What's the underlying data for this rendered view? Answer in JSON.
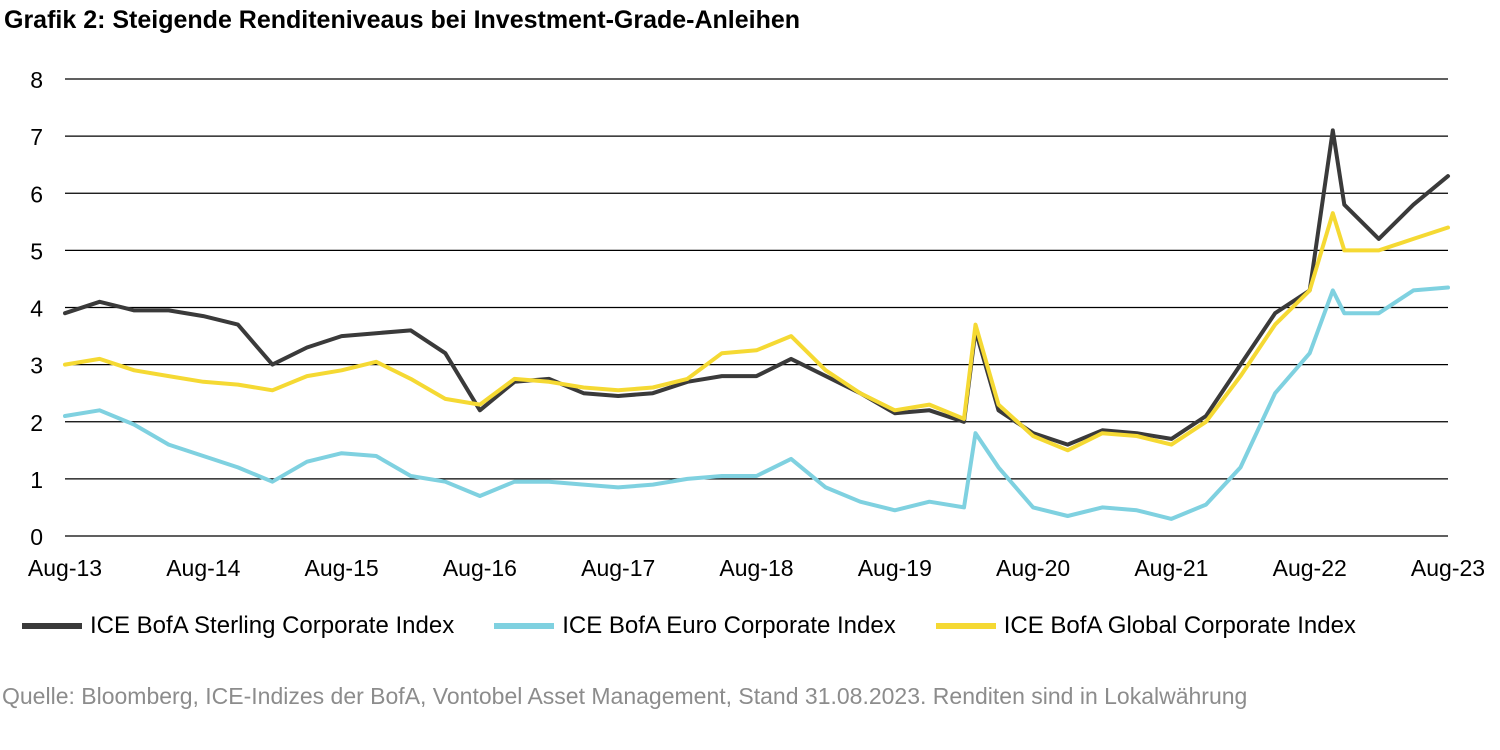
{
  "header": {
    "title": "Grafik 2: Steigende Renditeniveaus bei Investment-Grade-Anleihen"
  },
  "footer": {
    "source": "Quelle: Bloomberg, ICE-Indizes der BofA, Vontobel Asset Management, Stand 31.08.2023. Renditen sind in Lokalwährung"
  },
  "chart_data": {
    "type": "line",
    "title": "Grafik 2: Steigende Renditeniveaus bei Investment-Grade-Anleihen",
    "xlabel": "",
    "ylabel": "",
    "x_tick_labels": [
      "Aug-13",
      "Aug-14",
      "Aug-15",
      "Aug-16",
      "Aug-17",
      "Aug-18",
      "Aug-19",
      "Aug-20",
      "Aug-21",
      "Aug-22",
      "Aug-23"
    ],
    "y_tick_labels": [
      "0",
      "1",
      "2",
      "3",
      "4",
      "5",
      "6",
      "7",
      "8"
    ],
    "xlim": [
      "Aug-13",
      "Aug-23"
    ],
    "ylim": [
      0,
      8
    ],
    "grid": "horizontal",
    "legend_position": "bottom",
    "x": [
      "Aug-13",
      "Nov-13",
      "Feb-14",
      "May-14",
      "Aug-14",
      "Nov-14",
      "Feb-15",
      "May-15",
      "Aug-15",
      "Nov-15",
      "Feb-16",
      "May-16",
      "Aug-16",
      "Nov-16",
      "Feb-17",
      "May-17",
      "Aug-17",
      "Nov-17",
      "Feb-18",
      "May-18",
      "Aug-18",
      "Nov-18",
      "Feb-19",
      "May-19",
      "Aug-19",
      "Nov-19",
      "Feb-20",
      "Mar-20",
      "May-20",
      "Aug-20",
      "Nov-20",
      "Feb-21",
      "May-21",
      "Aug-21",
      "Nov-21",
      "Feb-22",
      "May-22",
      "Aug-22",
      "Oct-22",
      "Nov-22",
      "Feb-23",
      "May-23",
      "Aug-23"
    ],
    "series": [
      {
        "name": "ICE BofA Sterling Corporate Index",
        "color": "#3a3a3a",
        "values": [
          3.9,
          4.1,
          3.95,
          3.95,
          3.85,
          3.7,
          3.0,
          3.3,
          3.5,
          3.55,
          3.6,
          3.2,
          2.2,
          2.7,
          2.75,
          2.5,
          2.45,
          2.5,
          2.7,
          2.8,
          2.8,
          3.1,
          2.8,
          2.5,
          2.15,
          2.2,
          2.0,
          3.6,
          2.2,
          1.8,
          1.6,
          1.85,
          1.8,
          1.7,
          2.1,
          3.0,
          3.9,
          4.3,
          7.1,
          5.8,
          5.2,
          5.8,
          6.3
        ]
      },
      {
        "name": "ICE BofA Euro Corporate Index",
        "color": "#7fd1e0",
        "values": [
          2.1,
          2.2,
          1.95,
          1.6,
          1.4,
          1.2,
          0.95,
          1.3,
          1.45,
          1.4,
          1.05,
          0.95,
          0.7,
          0.95,
          0.95,
          0.9,
          0.85,
          0.9,
          1.0,
          1.05,
          1.05,
          1.35,
          0.85,
          0.6,
          0.45,
          0.6,
          0.5,
          1.8,
          1.2,
          0.5,
          0.35,
          0.5,
          0.45,
          0.3,
          0.55,
          1.2,
          2.5,
          3.2,
          4.3,
          3.9,
          3.9,
          4.3,
          4.35
        ]
      },
      {
        "name": "ICE BofA Global Corporate Index",
        "color": "#f5d933",
        "values": [
          3.0,
          3.1,
          2.9,
          2.8,
          2.7,
          2.65,
          2.55,
          2.8,
          2.9,
          3.05,
          2.75,
          2.4,
          2.3,
          2.75,
          2.7,
          2.6,
          2.55,
          2.6,
          2.75,
          3.2,
          3.25,
          3.5,
          2.9,
          2.5,
          2.2,
          2.3,
          2.05,
          3.7,
          2.3,
          1.75,
          1.5,
          1.8,
          1.75,
          1.6,
          2.0,
          2.8,
          3.7,
          4.3,
          5.65,
          5.0,
          5.0,
          5.2,
          5.4
        ]
      }
    ]
  }
}
